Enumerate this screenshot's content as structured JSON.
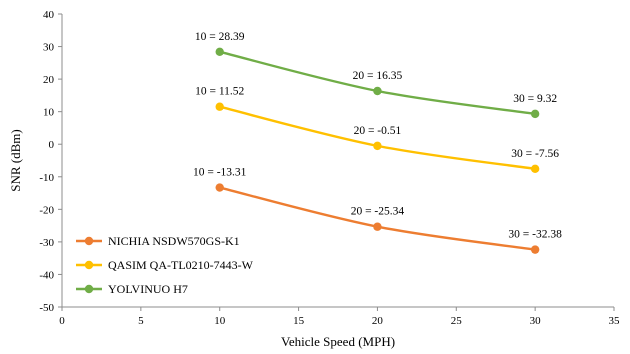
{
  "chart_data": {
    "type": "line",
    "title": "",
    "xlabel": "Vehicle Speed (MPH)",
    "ylabel": "SNR (dBm)",
    "xlim": [
      0,
      35
    ],
    "ylim": [
      -50,
      40
    ],
    "x_ticks": [
      0,
      5,
      10,
      15,
      20,
      25,
      30,
      35
    ],
    "y_ticks": [
      -50,
      -40,
      -30,
      -20,
      -10,
      0,
      10,
      20,
      30,
      40
    ],
    "grid": false,
    "legend_position": "bottom-left",
    "series": [
      {
        "name": "NICHIA NSDW570GS-K1",
        "color": "#ED7D31",
        "x": [
          10,
          20,
          30
        ],
        "y": [
          -13.31,
          -25.34,
          -32.38
        ],
        "labels": [
          "10 = -13.31",
          "20 = -25.34",
          "30 = -32.38"
        ]
      },
      {
        "name": "QASIM QA-TL0210-7443-W",
        "color": "#FFC000",
        "x": [
          10,
          20,
          30
        ],
        "y": [
          11.52,
          -0.51,
          -7.56
        ],
        "labels": [
          "10 = 11.52",
          "20 = -0.51",
          "30 = -7.56"
        ]
      },
      {
        "name": "YOLVINUO H7",
        "color": "#70AD47",
        "x": [
          10,
          20,
          30
        ],
        "y": [
          28.39,
          16.35,
          9.32
        ],
        "labels": [
          "10 = 28.39",
          "20 = 16.35",
          "30 = 9.32"
        ]
      }
    ]
  }
}
